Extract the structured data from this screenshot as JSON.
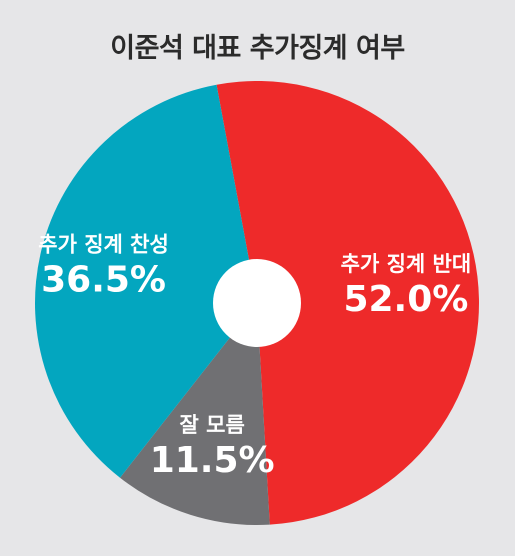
{
  "chart_data": {
    "type": "pie",
    "title": "이준석 대표 추가징계 여부",
    "slices": [
      {
        "label": "추가 징계 반대",
        "value": 52.0,
        "value_label": "52.0%",
        "color": "#ee2a2a"
      },
      {
        "label": "잘 모름",
        "value": 11.5,
        "value_label": "11.5%",
        "color": "#707073"
      },
      {
        "label": "추가 징계 찬성",
        "value": 36.5,
        "value_label": "36.5%",
        "color": "#03a6bf"
      }
    ],
    "donut_hole": true
  }
}
